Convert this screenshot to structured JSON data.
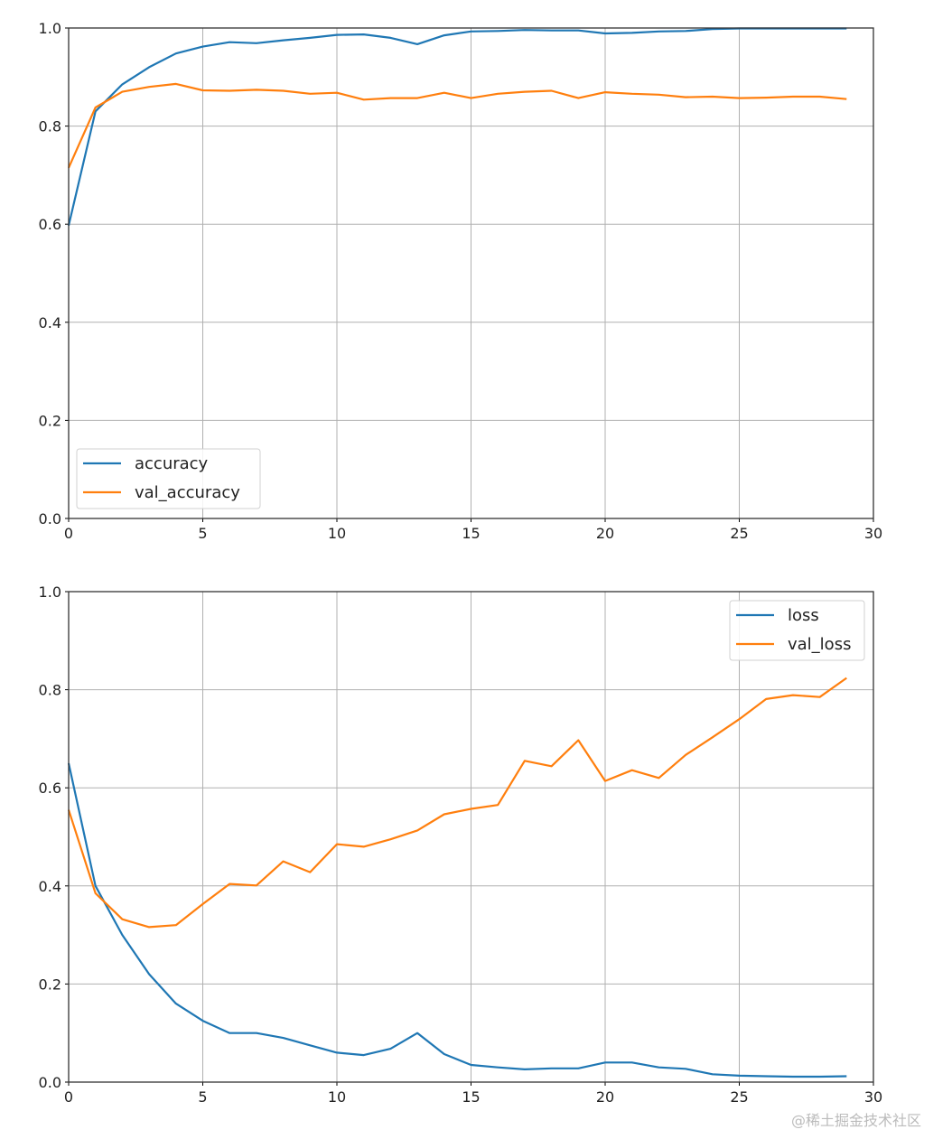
{
  "chart_data": [
    {
      "type": "line",
      "x": [
        0,
        1,
        2,
        3,
        4,
        5,
        6,
        7,
        8,
        9,
        10,
        11,
        12,
        13,
        14,
        15,
        16,
        17,
        18,
        19,
        20,
        21,
        22,
        23,
        24,
        25,
        26,
        27,
        28,
        29
      ],
      "series": [
        {
          "name": "accuracy",
          "color": "#1f77b4",
          "values": [
            0.597,
            0.83,
            0.885,
            0.92,
            0.948,
            0.962,
            0.971,
            0.969,
            0.975,
            0.98,
            0.986,
            0.987,
            0.98,
            0.967,
            0.985,
            0.993,
            0.994,
            0.996,
            0.995,
            0.995,
            0.989,
            0.99,
            0.993,
            0.994,
            0.998,
            0.999,
            0.999,
            0.999,
            0.999,
            0.999
          ]
        },
        {
          "name": "val_accuracy",
          "color": "#ff7f0e",
          "values": [
            0.715,
            0.838,
            0.87,
            0.88,
            0.886,
            0.873,
            0.872,
            0.874,
            0.872,
            0.866,
            0.868,
            0.854,
            0.857,
            0.857,
            0.868,
            0.857,
            0.866,
            0.87,
            0.872,
            0.857,
            0.869,
            0.866,
            0.864,
            0.859,
            0.86,
            0.857,
            0.858,
            0.86,
            0.86,
            0.855
          ]
        }
      ],
      "xlim": [
        0,
        30
      ],
      "ylim": [
        0,
        1.0
      ],
      "xticks": [
        "0",
        "5",
        "10",
        "15",
        "20",
        "25",
        "30"
      ],
      "yticks": [
        "0.0",
        "0.2",
        "0.4",
        "0.6",
        "0.8",
        "1.0"
      ],
      "grid": true,
      "legend": "lower-left"
    },
    {
      "type": "line",
      "x": [
        0,
        1,
        2,
        3,
        4,
        5,
        6,
        7,
        8,
        9,
        10,
        11,
        12,
        13,
        14,
        15,
        16,
        17,
        18,
        19,
        20,
        21,
        22,
        23,
        24,
        25,
        26,
        27,
        28,
        29
      ],
      "series": [
        {
          "name": "loss",
          "color": "#1f77b4",
          "values": [
            0.65,
            0.4,
            0.3,
            0.22,
            0.16,
            0.125,
            0.1,
            0.1,
            0.09,
            0.075,
            0.06,
            0.055,
            0.068,
            0.1,
            0.057,
            0.035,
            0.03,
            0.026,
            0.028,
            0.028,
            0.04,
            0.04,
            0.03,
            0.027,
            0.016,
            0.013,
            0.012,
            0.011,
            0.011,
            0.012
          ]
        },
        {
          "name": "val_loss",
          "color": "#ff7f0e",
          "values": [
            0.555,
            0.385,
            0.332,
            0.316,
            0.32,
            0.363,
            0.404,
            0.401,
            0.45,
            0.428,
            0.485,
            0.48,
            0.495,
            0.513,
            0.546,
            0.557,
            0.565,
            0.655,
            0.644,
            0.697,
            0.614,
            0.636,
            0.62,
            0.667,
            0.703,
            0.74,
            0.781,
            0.789,
            0.785,
            0.824
          ]
        }
      ],
      "xlim": [
        0,
        30
      ],
      "ylim": [
        0,
        1.0
      ],
      "xticks": [
        "0",
        "5",
        "10",
        "15",
        "20",
        "25",
        "30"
      ],
      "yticks": [
        "0.0",
        "0.2",
        "0.4",
        "0.6",
        "0.8",
        "1.0"
      ],
      "grid": true,
      "legend": "upper-right"
    }
  ],
  "watermark": "@稀土掘金技术社区"
}
